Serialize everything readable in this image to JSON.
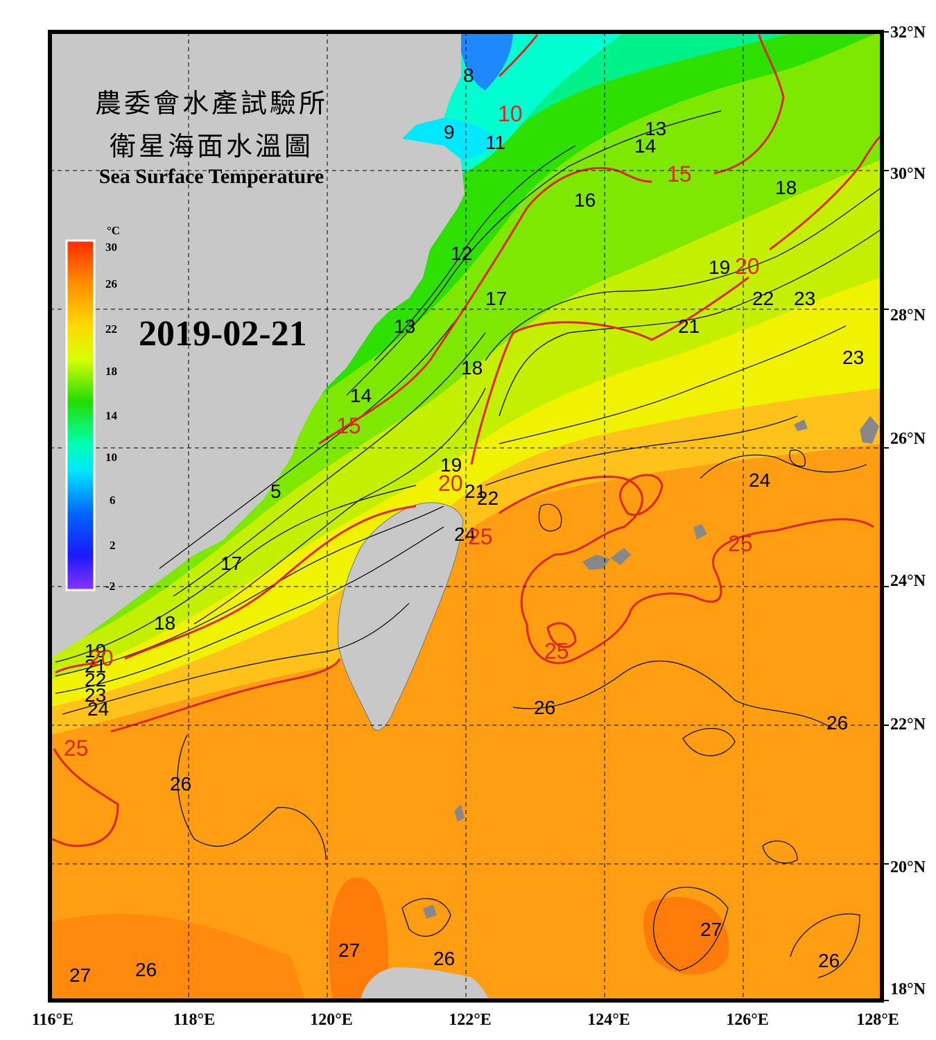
{
  "title": {
    "line1": "農委會水產試驗所",
    "line2": "衛星海面水溫圖",
    "english": "Sea Surface Temperature"
  },
  "date": "2019-02-21",
  "colorbar": {
    "unit": "°C",
    "ticks": [
      "30",
      "26",
      "22",
      "18",
      "14",
      "10",
      "6",
      "2",
      "-2"
    ],
    "colors": [
      "#ff2a00",
      "#ff8c00",
      "#ffd700",
      "#d8ff00",
      "#22dd00",
      "#00ffb0",
      "#00e5ff",
      "#0066ff",
      "#1a1aff",
      "#8833ff"
    ]
  },
  "axes": {
    "lon_labels": [
      "116°E",
      "118°E",
      "120°E",
      "122°E",
      "124°E",
      "126°E",
      "128°E"
    ],
    "lat_labels": [
      "32°N",
      "30°N",
      "28°N",
      "26°N",
      "24°N",
      "22°N",
      "20°N",
      "18°N"
    ],
    "lon_range": [
      116,
      128
    ],
    "lat_range": [
      18,
      32
    ],
    "grid": "dashed"
  },
  "contour_labels": {
    "black": [
      "8",
      "9",
      "11",
      "13",
      "14",
      "16",
      "12",
      "13",
      "14",
      "18",
      "16",
      "17",
      "18",
      "19",
      "21",
      "22",
      "23",
      "23",
      "24",
      "19",
      "21",
      "22",
      "24",
      "5",
      "17",
      "18",
      "19",
      "21",
      "22",
      "23",
      "24",
      "26",
      "26",
      "26",
      "27",
      "26",
      "27",
      "26",
      "27",
      "26"
    ],
    "red": [
      "10",
      "15",
      "15",
      "20",
      "20",
      "20",
      "25",
      "25",
      "25",
      "25"
    ]
  }
}
